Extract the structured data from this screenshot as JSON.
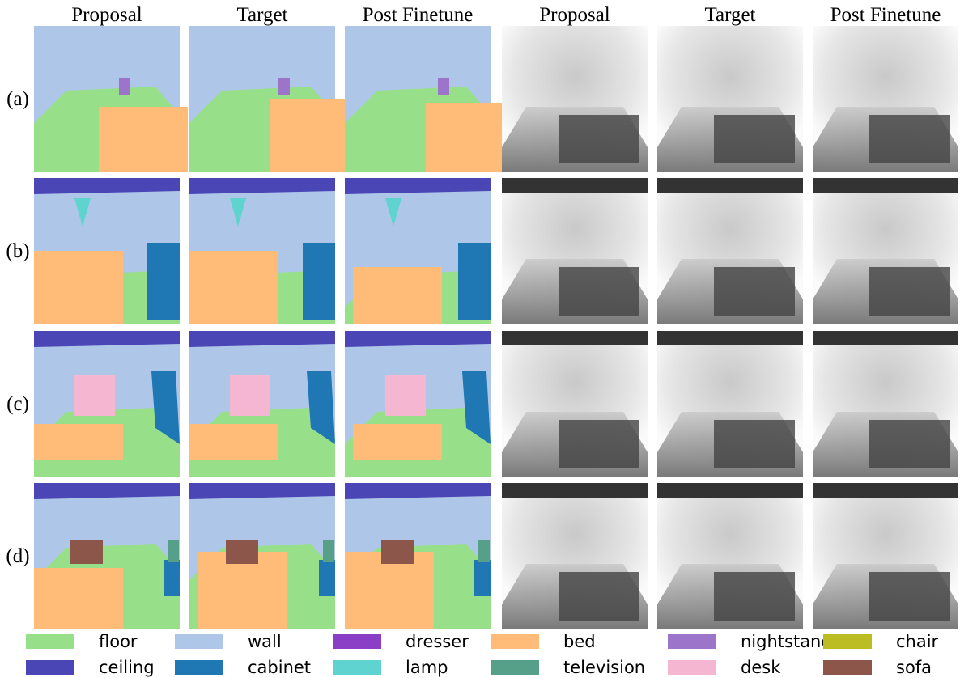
{
  "columns": [
    "Proposal",
    "Target",
    "Post Finetune",
    "Proposal",
    "Target",
    "Post Finetune"
  ],
  "rows": [
    "(a)",
    "(b)",
    "(c)",
    "(d)"
  ],
  "legend": [
    {
      "name": "floor",
      "color": "#98df8a"
    },
    {
      "name": "wall",
      "color": "#aec7e8"
    },
    {
      "name": "dresser",
      "color": "#8b3fc6"
    },
    {
      "name": "bed",
      "color": "#ffbb78"
    },
    {
      "name": "nightstand",
      "color": "#9c74c9"
    },
    {
      "name": "chair",
      "color": "#bcbd22"
    },
    {
      "name": "ceiling",
      "color": "#4b46b6"
    },
    {
      "name": "cabinet",
      "color": "#1f77b4"
    },
    {
      "name": "lamp",
      "color": "#5fd3cf"
    },
    {
      "name": "television",
      "color": "#56a08a"
    },
    {
      "name": "desk",
      "color": "#f5b6d2"
    },
    {
      "name": "sofa",
      "color": "#8c564b"
    }
  ]
}
